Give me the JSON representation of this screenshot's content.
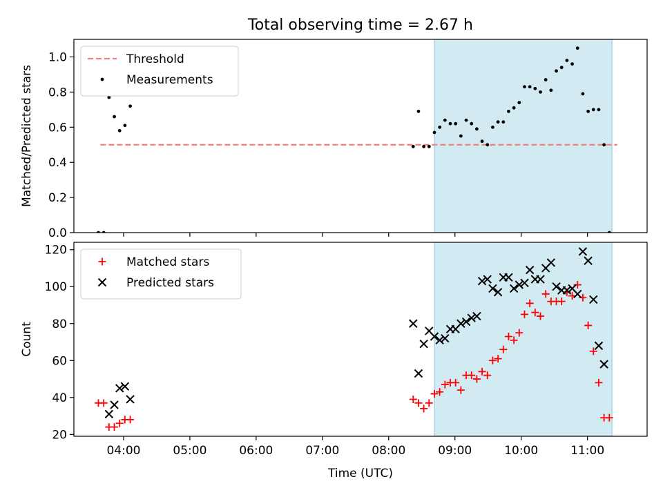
{
  "chart_data": {
    "type": "scatter",
    "title": "Total observing time = 2.67 h",
    "xlabel": "Time (UTC)",
    "x_unit": "hours UTC",
    "xlim": [
      3.25,
      11.9
    ],
    "x_ticks": [
      {
        "v": 4,
        "label": "04:00"
      },
      {
        "v": 5,
        "label": "05:00"
      },
      {
        "v": 6,
        "label": "06:00"
      },
      {
        "v": 7,
        "label": "07:00"
      },
      {
        "v": 8,
        "label": "08:00"
      },
      {
        "v": 9,
        "label": "09:00"
      },
      {
        "v": 10,
        "label": "10:00"
      },
      {
        "v": 11,
        "label": "11:00"
      }
    ],
    "shaded_interval": {
      "from": 8.69,
      "to": 11.37,
      "color": "#add8e6"
    },
    "panels": [
      {
        "id": "top",
        "ylabel": "Matched/Predicted stars",
        "ylim": [
          0,
          1.1
        ],
        "y_ticks": [
          {
            "v": 0,
            "label": "0.0"
          },
          {
            "v": 0.2,
            "label": "0.2"
          },
          {
            "v": 0.4,
            "label": "0.4"
          },
          {
            "v": 0.6,
            "label": "0.6"
          },
          {
            "v": 0.8,
            "label": "0.8"
          },
          {
            "v": 1.0,
            "label": "1.0"
          }
        ],
        "legend_position": "upper-left",
        "threshold": {
          "name": "Threshold",
          "value": 0.5,
          "x_from": 3.65,
          "x_to": 11.45,
          "color": "#f08080"
        },
        "series": [
          {
            "name": "Measurements",
            "marker": "dot",
            "color": "#000000",
            "points": [
              [
                3.62,
                0.0
              ],
              [
                3.7,
                0.0
              ],
              [
                3.78,
                0.77
              ],
              [
                3.86,
                0.66
              ],
              [
                3.94,
                0.58
              ],
              [
                4.02,
                0.61
              ],
              [
                4.1,
                0.72
              ],
              [
                8.37,
                0.49
              ],
              [
                8.45,
                0.69
              ],
              [
                8.53,
                0.49
              ],
              [
                8.61,
                0.49
              ],
              [
                8.69,
                0.57
              ],
              [
                8.77,
                0.6
              ],
              [
                8.85,
                0.64
              ],
              [
                8.93,
                0.62
              ],
              [
                9.01,
                0.62
              ],
              [
                9.09,
                0.55
              ],
              [
                9.17,
                0.64
              ],
              [
                9.25,
                0.62
              ],
              [
                9.33,
                0.59
              ],
              [
                9.41,
                0.52
              ],
              [
                9.49,
                0.5
              ],
              [
                9.57,
                0.6
              ],
              [
                9.65,
                0.63
              ],
              [
                9.73,
                0.63
              ],
              [
                9.81,
                0.69
              ],
              [
                9.89,
                0.71
              ],
              [
                9.97,
                0.74
              ],
              [
                10.05,
                0.83
              ],
              [
                10.13,
                0.83
              ],
              [
                10.21,
                0.82
              ],
              [
                10.29,
                0.8
              ],
              [
                10.37,
                0.87
              ],
              [
                10.45,
                0.81
              ],
              [
                10.53,
                0.92
              ],
              [
                10.61,
                0.94
              ],
              [
                10.69,
                0.98
              ],
              [
                10.77,
                0.96
              ],
              [
                10.85,
                1.05
              ],
              [
                10.93,
                0.79
              ],
              [
                11.01,
                0.69
              ],
              [
                11.09,
                0.7
              ],
              [
                11.17,
                0.7
              ],
              [
                11.25,
                0.5
              ],
              [
                11.33,
                0.0
              ]
            ]
          }
        ]
      },
      {
        "id": "bottom",
        "ylabel": "Count",
        "ylim": [
          19,
          124
        ],
        "y_ticks": [
          {
            "v": 20,
            "label": "20"
          },
          {
            "v": 40,
            "label": "40"
          },
          {
            "v": 60,
            "label": "60"
          },
          {
            "v": 80,
            "label": "80"
          },
          {
            "v": 100,
            "label": "100"
          },
          {
            "v": 120,
            "label": "120"
          }
        ],
        "legend_position": "upper-left",
        "series": [
          {
            "name": "Matched stars",
            "marker": "plus",
            "color": "#ff0000",
            "points": [
              [
                3.62,
                37
              ],
              [
                3.7,
                37
              ],
              [
                3.78,
                24
              ],
              [
                3.86,
                24
              ],
              [
                3.94,
                26
              ],
              [
                4.02,
                28
              ],
              [
                4.1,
                28
              ],
              [
                8.37,
                39
              ],
              [
                8.45,
                37
              ],
              [
                8.53,
                34
              ],
              [
                8.61,
                37
              ],
              [
                8.69,
                42
              ],
              [
                8.77,
                43
              ],
              [
                8.85,
                47
              ],
              [
                8.93,
                48
              ],
              [
                9.01,
                48
              ],
              [
                9.09,
                44
              ],
              [
                9.17,
                52
              ],
              [
                9.25,
                52
              ],
              [
                9.33,
                50
              ],
              [
                9.41,
                54
              ],
              [
                9.49,
                52
              ],
              [
                9.57,
                60
              ],
              [
                9.65,
                61
              ],
              [
                9.73,
                66
              ],
              [
                9.81,
                73
              ],
              [
                9.89,
                71
              ],
              [
                9.97,
                75
              ],
              [
                10.05,
                85
              ],
              [
                10.13,
                91
              ],
              [
                10.21,
                86
              ],
              [
                10.29,
                84
              ],
              [
                10.37,
                96
              ],
              [
                10.45,
                92
              ],
              [
                10.53,
                92
              ],
              [
                10.61,
                92
              ],
              [
                10.69,
                97
              ],
              [
                10.77,
                95
              ],
              [
                10.85,
                101
              ],
              [
                10.93,
                94
              ],
              [
                11.01,
                79
              ],
              [
                11.09,
                65
              ],
              [
                11.17,
                48
              ],
              [
                11.25,
                29
              ],
              [
                11.33,
                29
              ]
            ]
          },
          {
            "name": "Predicted stars",
            "marker": "cross",
            "color": "#000000",
            "points": [
              [
                3.78,
                31
              ],
              [
                3.86,
                36
              ],
              [
                3.94,
                45
              ],
              [
                4.02,
                46
              ],
              [
                4.1,
                39
              ],
              [
                8.37,
                80
              ],
              [
                8.45,
                53
              ],
              [
                8.53,
                69
              ],
              [
                8.61,
                76
              ],
              [
                8.69,
                73
              ],
              [
                8.77,
                71
              ],
              [
                8.85,
                72
              ],
              [
                8.93,
                77
              ],
              [
                9.01,
                77
              ],
              [
                9.09,
                80
              ],
              [
                9.17,
                81
              ],
              [
                9.25,
                83
              ],
              [
                9.33,
                84
              ],
              [
                9.41,
                103
              ],
              [
                9.49,
                104
              ],
              [
                9.57,
                99
              ],
              [
                9.65,
                97
              ],
              [
                9.73,
                105
              ],
              [
                9.81,
                105
              ],
              [
                9.89,
                99
              ],
              [
                9.97,
                101
              ],
              [
                10.05,
                102
              ],
              [
                10.13,
                109
              ],
              [
                10.21,
                104
              ],
              [
                10.29,
                104
              ],
              [
                10.37,
                110
              ],
              [
                10.45,
                113
              ],
              [
                10.53,
                100
              ],
              [
                10.61,
                98
              ],
              [
                10.69,
                98
              ],
              [
                10.77,
                99
              ],
              [
                10.85,
                96
              ],
              [
                10.93,
                119
              ],
              [
                11.01,
                114
              ],
              [
                11.09,
                93
              ],
              [
                11.17,
                68
              ],
              [
                11.25,
                58
              ]
            ]
          }
        ]
      }
    ]
  }
}
